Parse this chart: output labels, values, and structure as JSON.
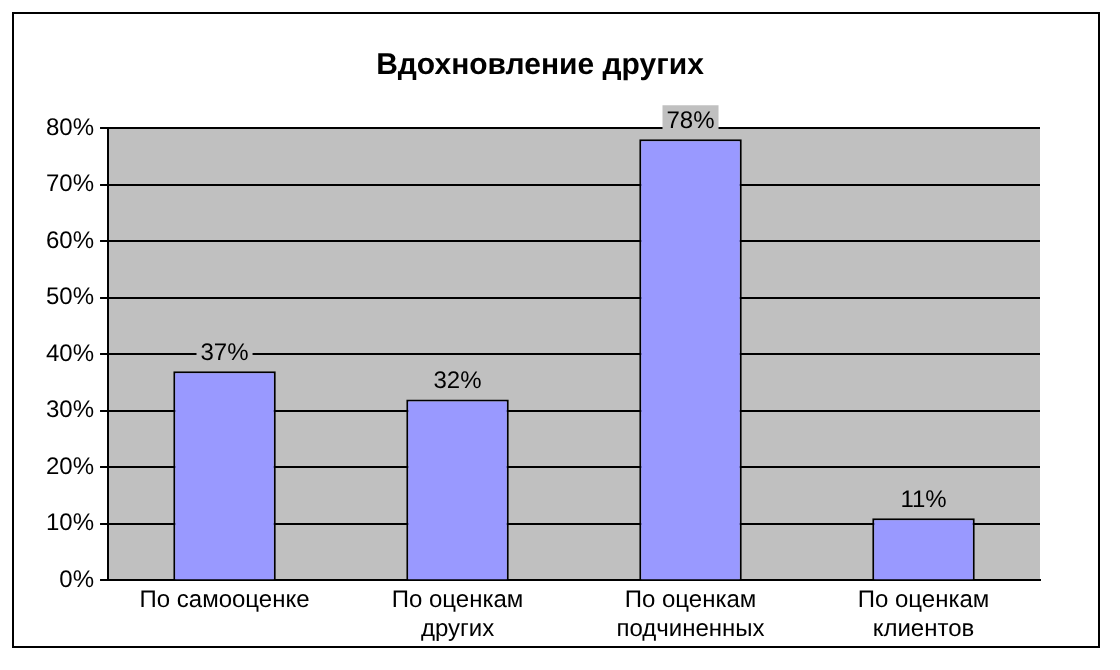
{
  "chart_data": {
    "type": "bar",
    "title": "Вдохновление других",
    "categories": [
      "По самооценке",
      "По оценкам других",
      "По оценкам подчиненных",
      "По оценкам клиентов"
    ],
    "values": [
      37,
      32,
      78,
      11
    ],
    "color": "#9999ff",
    "value_labels": [
      "37%",
      "32%",
      "78%",
      "11%"
    ],
    "ylim": [
      0,
      80
    ],
    "yticks": [
      {
        "value": 0,
        "label": "0%"
      },
      {
        "value": 10,
        "label": "10%"
      },
      {
        "value": 20,
        "label": "20%"
      },
      {
        "value": 30,
        "label": "30%"
      },
      {
        "value": 40,
        "label": "40%"
      },
      {
        "value": 50,
        "label": "50%"
      },
      {
        "value": 60,
        "label": "60%"
      },
      {
        "value": 70,
        "label": "70%"
      },
      {
        "value": 80,
        "label": "80%"
      }
    ],
    "grid": "y"
  }
}
